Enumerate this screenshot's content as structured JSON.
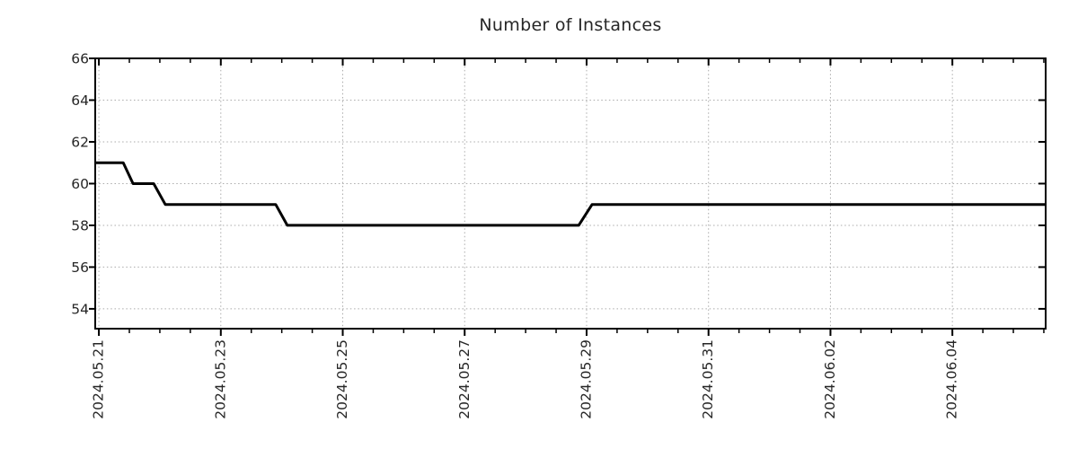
{
  "chart_data": {
    "type": "line",
    "title": "Number of Instances",
    "xlabel": "",
    "ylabel": "",
    "legend": "none",
    "colors": {
      "background": "#ffffff",
      "axis": "#000000",
      "grid": "#ababab",
      "text": "#262626",
      "line": "#000000"
    },
    "grid": {
      "visible": true,
      "style": "dotted"
    },
    "x_axis": {
      "epoch_label": "2024.05.21",
      "tick_labels": [
        "2024.05.21",
        "2024.05.23",
        "2024.05.25",
        "2024.05.27",
        "2024.05.29",
        "2024.05.31",
        "2024.06.02",
        "2024.06.04"
      ],
      "tick_days": [
        0,
        2,
        4,
        6,
        8,
        10,
        12,
        14
      ],
      "minor_tick_interval_days": 0.5,
      "lim_days": [
        -0.06,
        15.53
      ],
      "label_rotation_deg": 90
    },
    "y_axis": {
      "ticks": [
        54,
        56,
        58,
        60,
        62,
        64,
        66
      ],
      "lim": [
        53.05,
        66
      ]
    },
    "series": [
      {
        "name": "instances",
        "line_width": 3,
        "points": [
          {
            "day": -0.06,
            "approx_time": "2024-05-20 22:30",
            "value": 61
          },
          {
            "day": 0.4,
            "approx_time": "2024-05-21 09:30",
            "value": 61
          },
          {
            "day": 0.56,
            "approx_time": "2024-05-21 13:30",
            "value": 60
          },
          {
            "day": 0.9,
            "approx_time": "2024-05-21 21:30",
            "value": 60
          },
          {
            "day": 1.09,
            "approx_time": "2024-05-22 02:00",
            "value": 59
          },
          {
            "day": 2.9,
            "approx_time": "2024-05-23 21:30",
            "value": 59
          },
          {
            "day": 3.09,
            "approx_time": "2024-05-24 02:00",
            "value": 58
          },
          {
            "day": 7.87,
            "approx_time": "2024-05-28 21:00",
            "value": 58
          },
          {
            "day": 8.09,
            "approx_time": "2024-05-29 02:00",
            "value": 59
          },
          {
            "day": 15.53,
            "approx_time": "2024-06-05 12:30",
            "value": 59
          }
        ]
      }
    ]
  }
}
